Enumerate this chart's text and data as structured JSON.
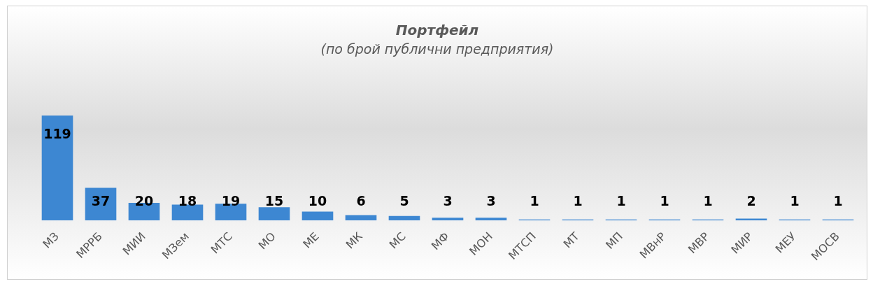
{
  "chart_data": {
    "type": "bar",
    "title": "Портфейл",
    "subtitle": "(по брой публични предприятия)",
    "categories": [
      "МЗ",
      "МРРБ",
      "МИИ",
      "МЗем",
      "МТС",
      "МО",
      "МЕ",
      "МК",
      "МС",
      "МФ",
      "МОН",
      "МТСП",
      "МТ",
      "МП",
      "МВнР",
      "МВР",
      "МИР",
      "МЕУ",
      "МОСВ"
    ],
    "values": [
      119,
      37,
      20,
      18,
      19,
      15,
      10,
      6,
      5,
      3,
      3,
      1,
      1,
      1,
      1,
      1,
      2,
      1,
      1
    ],
    "color": "#3d87d2",
    "data_labels": true,
    "grid": false,
    "legend": false
  }
}
